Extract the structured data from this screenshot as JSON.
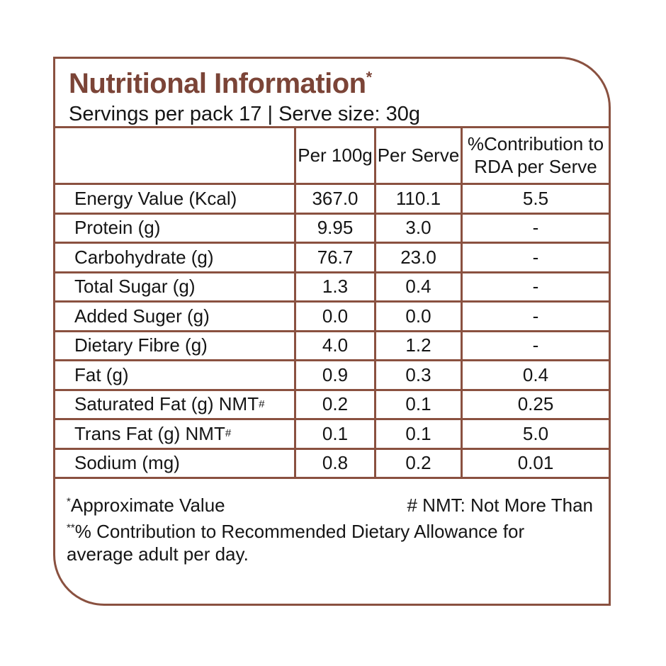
{
  "colors": {
    "accent_brown": "#7b4437",
    "line_brown": "#8a5140",
    "text": "#151515",
    "background": "#ffffff"
  },
  "header": {
    "title": "Nutritional Information",
    "title_sup": "*",
    "subtitle": "Servings per pack 17 | Serve size: 30g"
  },
  "table": {
    "column_headers": {
      "col1": "",
      "col2": "Per 100g",
      "col3": "Per Serve",
      "col4": "%Contribution to RDA per Serve"
    },
    "rows": [
      {
        "label": "Energy Value (Kcal)",
        "label_sup": "",
        "per_100g": "367.0",
        "per_serve": "110.1",
        "rda_contribution": "5.5"
      },
      {
        "label": "Protein (g)",
        "label_sup": "",
        "per_100g": "9.95",
        "per_serve": "3.0",
        "rda_contribution": "-"
      },
      {
        "label": "Carbohydrate (g)",
        "label_sup": "",
        "per_100g": "76.7",
        "per_serve": "23.0",
        "rda_contribution": "-"
      },
      {
        "label": "Total Sugar (g)",
        "label_sup": "",
        "per_100g": "1.3",
        "per_serve": "0.4",
        "rda_contribution": "-"
      },
      {
        "label": "Added Suger (g)",
        "label_sup": "",
        "per_100g": "0.0",
        "per_serve": "0.0",
        "rda_contribution": "-"
      },
      {
        "label": "Dietary Fibre (g)",
        "label_sup": "",
        "per_100g": "4.0",
        "per_serve": "1.2",
        "rda_contribution": "-"
      },
      {
        "label": "Fat (g)",
        "label_sup": "",
        "per_100g": "0.9",
        "per_serve": "0.3",
        "rda_contribution": "0.4"
      },
      {
        "label": "Saturated Fat (g) NMT",
        "label_sup": "#",
        "per_100g": "0.2",
        "per_serve": "0.1",
        "rda_contribution": "0.25"
      },
      {
        "label": "Trans Fat (g) NMT",
        "label_sup": "#",
        "per_100g": "0.1",
        "per_serve": "0.1",
        "rda_contribution": "5.0"
      },
      {
        "label": "Sodium (mg)",
        "label_sup": "",
        "per_100g": "0.8",
        "per_serve": "0.2",
        "rda_contribution": "0.01"
      }
    ]
  },
  "footnotes": {
    "approximate_sup": "*",
    "approximate": "Approximate Value",
    "nmt": "# NMT: Not More Than",
    "rda_sup": "**",
    "rda": "% Contribution to Recommended Dietary Allowance for average adult per day."
  }
}
